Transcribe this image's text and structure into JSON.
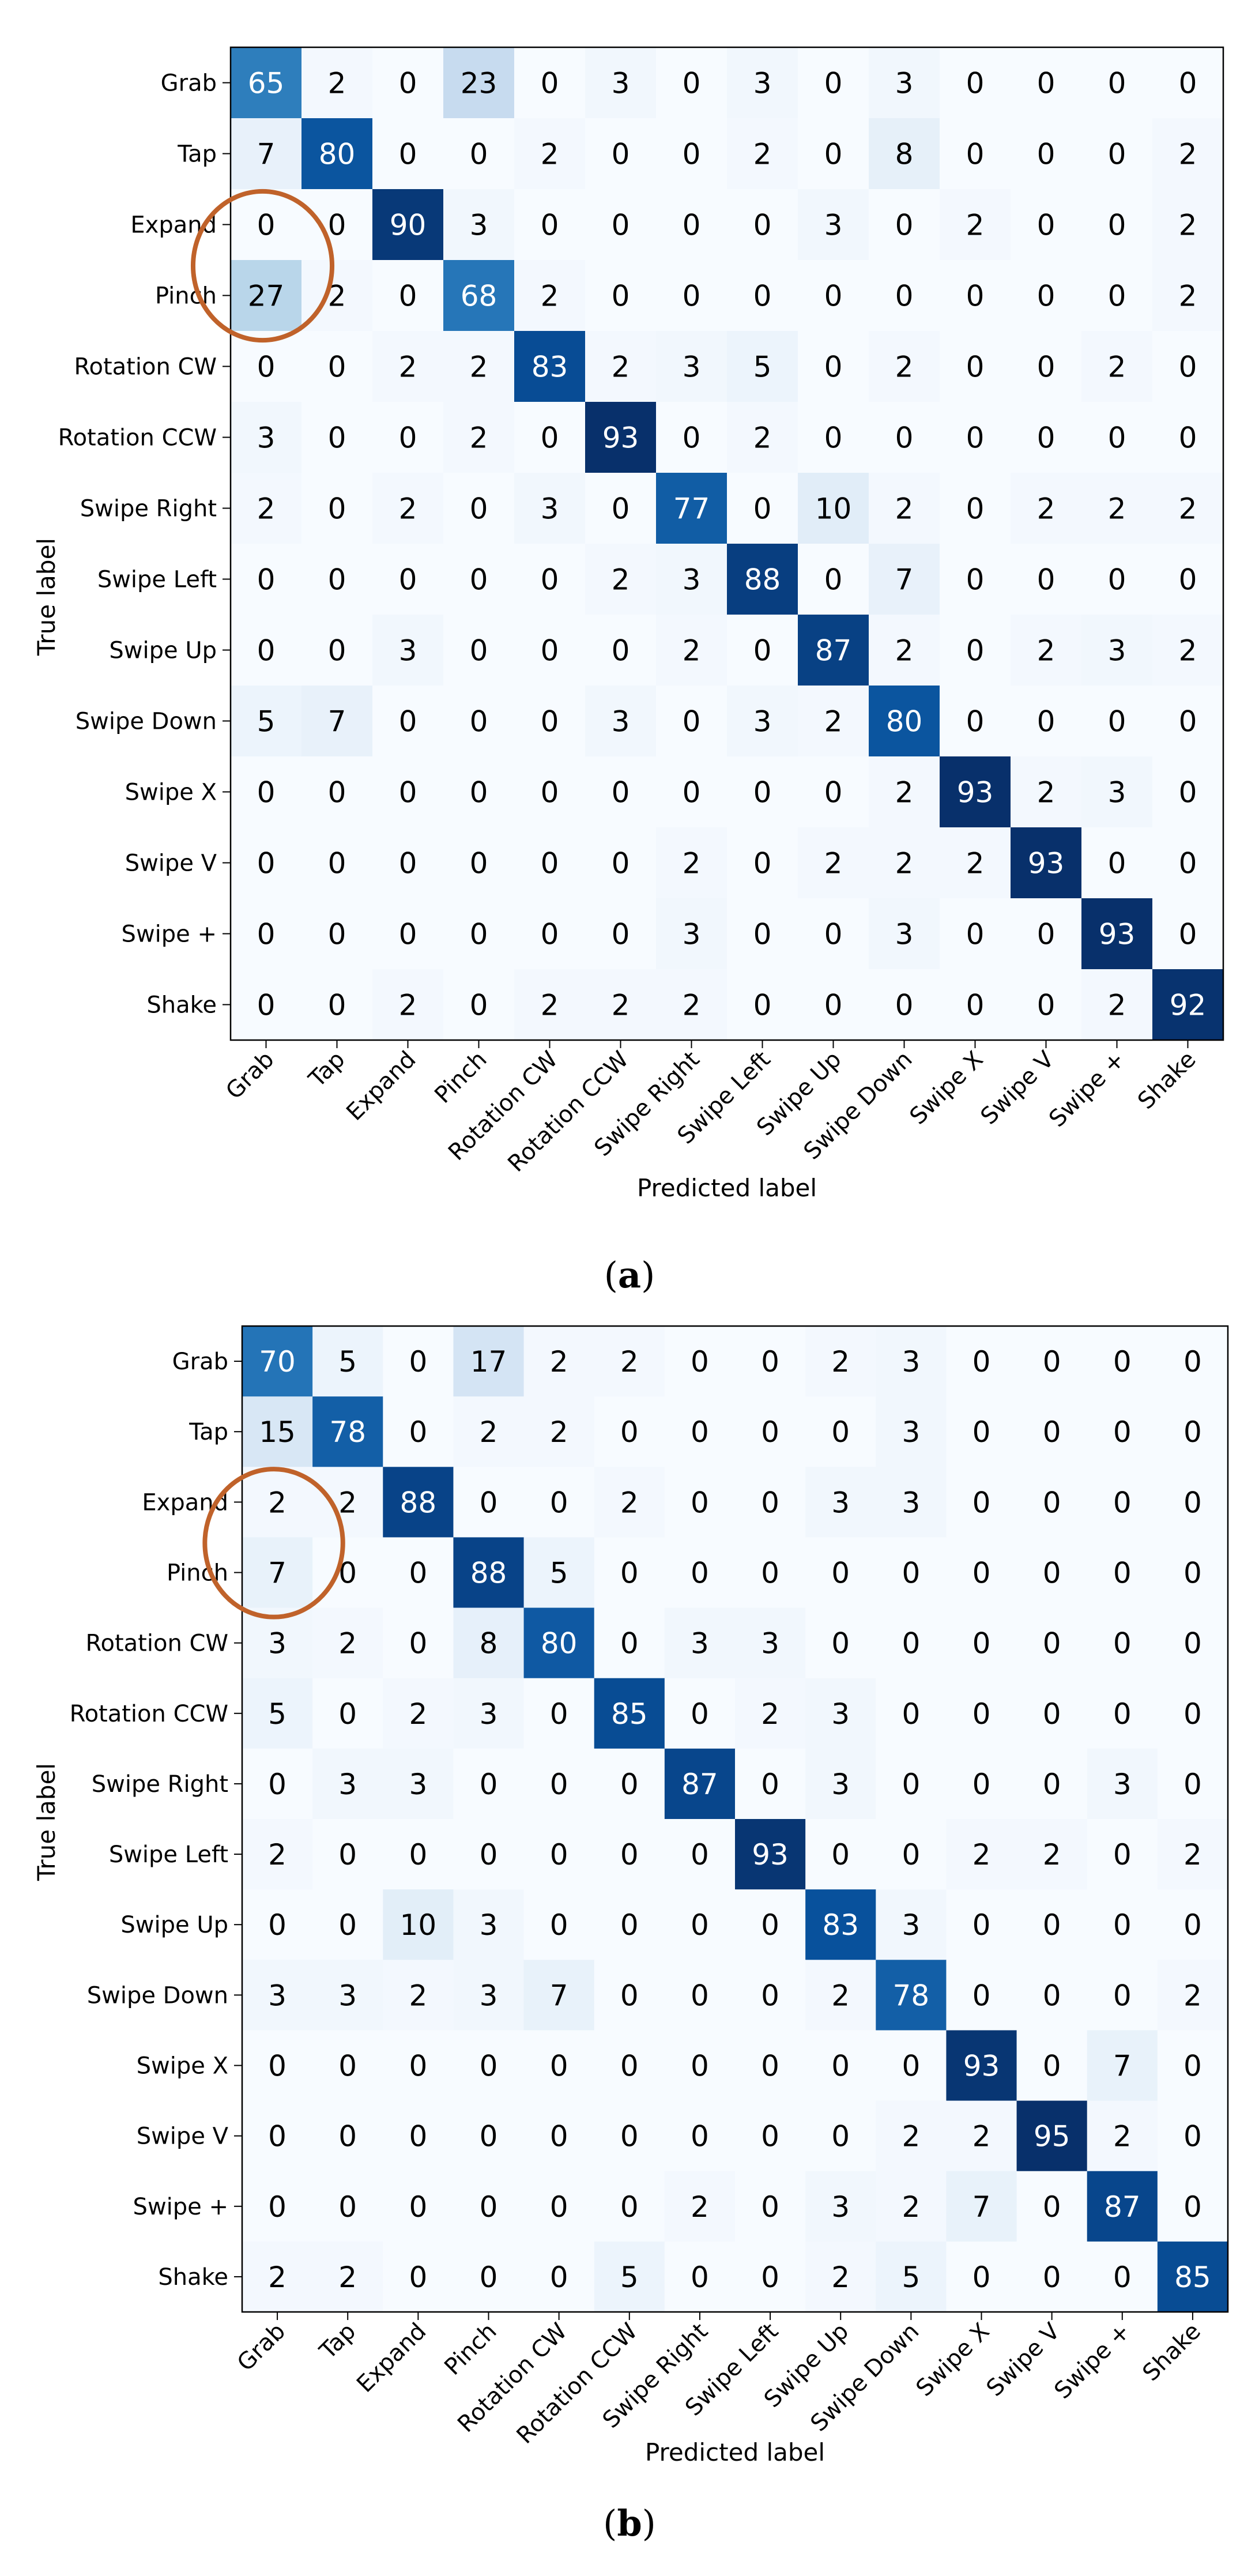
{
  "chart_data": [
    {
      "type": "heatmap",
      "panel": "a",
      "caption_letter": "a",
      "xlabel": "Predicted label",
      "ylabel": "True label",
      "categories": [
        "Grab",
        "Tap",
        "Expand",
        "Pinch",
        "Rotation CW",
        "Rotation CCW",
        "Swipe Right",
        "Swipe Left",
        "Swipe Up",
        "Swipe Down",
        "Swipe X",
        "Swipe V",
        "Swipe +",
        "Shake"
      ],
      "values": [
        [
          65,
          2,
          0,
          23,
          0,
          3,
          0,
          3,
          0,
          3,
          0,
          0,
          0,
          0
        ],
        [
          7,
          80,
          0,
          0,
          2,
          0,
          0,
          2,
          0,
          8,
          0,
          0,
          0,
          2
        ],
        [
          0,
          0,
          90,
          3,
          0,
          0,
          0,
          0,
          3,
          0,
          2,
          0,
          0,
          2
        ],
        [
          27,
          2,
          0,
          68,
          2,
          0,
          0,
          0,
          0,
          0,
          0,
          0,
          0,
          2
        ],
        [
          0,
          0,
          2,
          2,
          83,
          2,
          3,
          5,
          0,
          2,
          0,
          0,
          2,
          0
        ],
        [
          3,
          0,
          0,
          2,
          0,
          93,
          0,
          2,
          0,
          0,
          0,
          0,
          0,
          0
        ],
        [
          2,
          0,
          2,
          0,
          3,
          0,
          77,
          0,
          10,
          2,
          0,
          2,
          2,
          2
        ],
        [
          0,
          0,
          0,
          0,
          0,
          2,
          3,
          88,
          0,
          7,
          0,
          0,
          0,
          0
        ],
        [
          0,
          0,
          3,
          0,
          0,
          0,
          2,
          0,
          87,
          2,
          0,
          2,
          3,
          2
        ],
        [
          5,
          7,
          0,
          0,
          0,
          3,
          0,
          3,
          2,
          80,
          0,
          0,
          0,
          0
        ],
        [
          0,
          0,
          0,
          0,
          0,
          0,
          0,
          0,
          0,
          2,
          93,
          2,
          3,
          0
        ],
        [
          0,
          0,
          0,
          0,
          0,
          0,
          2,
          0,
          2,
          2,
          2,
          93,
          0,
          0
        ],
        [
          0,
          0,
          0,
          0,
          0,
          0,
          3,
          0,
          0,
          3,
          0,
          0,
          93,
          0
        ],
        [
          0,
          0,
          2,
          0,
          2,
          2,
          2,
          0,
          0,
          0,
          0,
          0,
          2,
          92
        ]
      ],
      "vmax": 93,
      "highlight": {
        "rows": [
          2,
          3
        ],
        "col": 0,
        "color": "#c0622a"
      }
    },
    {
      "type": "heatmap",
      "panel": "b",
      "caption_letter": "b",
      "xlabel": "Predicted label",
      "ylabel": "True label",
      "categories": [
        "Grab",
        "Tap",
        "Expand",
        "Pinch",
        "Rotation CW",
        "Rotation CCW",
        "Swipe Right",
        "Swipe Left",
        "Swipe Up",
        "Swipe Down",
        "Swipe X",
        "Swipe V",
        "Swipe +",
        "Shake"
      ],
      "values": [
        [
          70,
          5,
          0,
          17,
          2,
          2,
          0,
          0,
          2,
          3,
          0,
          0,
          0,
          0
        ],
        [
          15,
          78,
          0,
          2,
          2,
          0,
          0,
          0,
          0,
          3,
          0,
          0,
          0,
          0
        ],
        [
          2,
          2,
          88,
          0,
          0,
          2,
          0,
          0,
          3,
          3,
          0,
          0,
          0,
          0
        ],
        [
          7,
          0,
          0,
          88,
          5,
          0,
          0,
          0,
          0,
          0,
          0,
          0,
          0,
          0
        ],
        [
          3,
          2,
          0,
          8,
          80,
          0,
          3,
          3,
          0,
          0,
          0,
          0,
          0,
          0
        ],
        [
          5,
          0,
          2,
          3,
          0,
          85,
          0,
          2,
          3,
          0,
          0,
          0,
          0,
          0
        ],
        [
          0,
          3,
          3,
          0,
          0,
          0,
          87,
          0,
          3,
          0,
          0,
          0,
          3,
          0
        ],
        [
          2,
          0,
          0,
          0,
          0,
          0,
          0,
          93,
          0,
          0,
          2,
          2,
          0,
          2
        ],
        [
          0,
          0,
          10,
          3,
          0,
          0,
          0,
          0,
          83,
          3,
          0,
          0,
          0,
          0
        ],
        [
          3,
          3,
          2,
          3,
          7,
          0,
          0,
          0,
          2,
          78,
          0,
          0,
          0,
          2
        ],
        [
          0,
          0,
          0,
          0,
          0,
          0,
          0,
          0,
          0,
          0,
          93,
          0,
          7,
          0
        ],
        [
          0,
          0,
          0,
          0,
          0,
          0,
          0,
          0,
          0,
          2,
          2,
          95,
          2,
          0
        ],
        [
          0,
          0,
          0,
          0,
          0,
          0,
          2,
          0,
          3,
          2,
          7,
          0,
          87,
          0
        ],
        [
          2,
          2,
          0,
          0,
          0,
          5,
          0,
          0,
          2,
          5,
          0,
          0,
          0,
          85
        ]
      ],
      "vmax": 95,
      "highlight": {
        "rows": [
          2,
          3
        ],
        "col": 0,
        "color": "#c0622a"
      }
    }
  ]
}
